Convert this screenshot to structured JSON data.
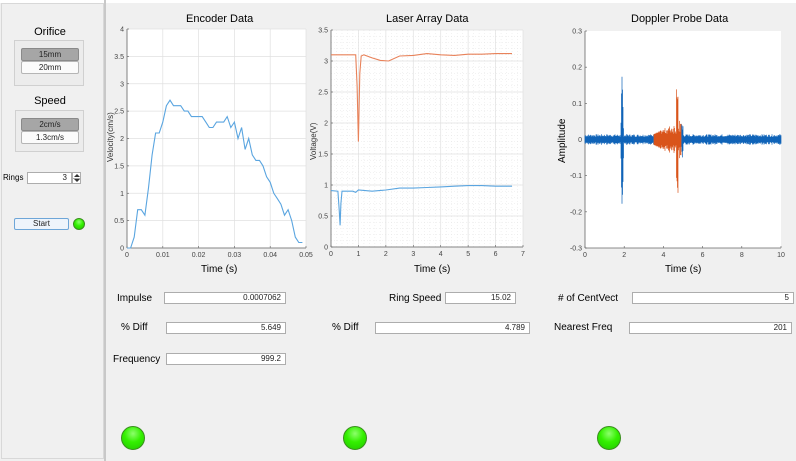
{
  "left_panel": {
    "orifice": {
      "title": "Orifice",
      "options": [
        {
          "label": "15mm",
          "selected": true
        },
        {
          "label": "20mm",
          "selected": false
        }
      ]
    },
    "speed": {
      "title": "Speed",
      "options": [
        {
          "label": "2cm/s",
          "selected": true
        },
        {
          "label": "1.3cm/s",
          "selected": false
        }
      ]
    },
    "rings": {
      "label": "Rings",
      "value": "3"
    },
    "start_label": "Start",
    "status_lamp_color": "#33ee00"
  },
  "encoder": {
    "title": "Encoder Data",
    "fields": {
      "impulse_label": "Impulse",
      "impulse_value": "0.0007062",
      "diff_label": "% Diff",
      "diff_value": "5.649",
      "frequency_label": "Frequency",
      "frequency_value": "999.2"
    },
    "lamp_color": "#33ee00"
  },
  "laser": {
    "title": "Laser Array Data",
    "fields": {
      "ring_speed_label": "Ring Speed",
      "ring_speed_value": "15.02",
      "diff_label": "% Diff",
      "diff_value": "4.789"
    },
    "lamp_color": "#33ee00"
  },
  "doppler": {
    "title": "Doppler Probe Data",
    "fields": {
      "centvect_label": "# of CentVect",
      "centvect_value": "5",
      "nearest_freq_label": "Nearest Freq",
      "nearest_freq_value": "201"
    },
    "lamp_color": "#33ee00"
  },
  "chart_data": [
    {
      "type": "line",
      "title": "Encoder Data",
      "xlabel": "Time (s)",
      "ylabel": "Velocity(cm/s)",
      "xlim": [
        0,
        0.05
      ],
      "ylim": [
        0,
        4
      ],
      "xticks": [
        "0",
        "0.01",
        "0.02",
        "0.03",
        "0.04",
        "0.05"
      ],
      "yticks": [
        "0",
        "0.5",
        "1",
        "1.5",
        "2",
        "2.5",
        "3",
        "3.5",
        "4"
      ],
      "grid": true,
      "series": [
        {
          "name": "velocity",
          "color": "#5aa5e0",
          "x": [
            0,
            0.001,
            0.002,
            0.003,
            0.004,
            0.005,
            0.006,
            0.007,
            0.008,
            0.009,
            0.01,
            0.011,
            0.012,
            0.013,
            0.014,
            0.015,
            0.016,
            0.017,
            0.018,
            0.019,
            0.02,
            0.021,
            0.022,
            0.023,
            0.024,
            0.025,
            0.026,
            0.027,
            0.028,
            0.029,
            0.03,
            0.031,
            0.032,
            0.033,
            0.034,
            0.035,
            0.036,
            0.037,
            0.038,
            0.039,
            0.04,
            0.041,
            0.042,
            0.043,
            0.044,
            0.045,
            0.046,
            0.047,
            0.048,
            0.049
          ],
          "values": [
            0,
            0,
            0.2,
            0.7,
            0.7,
            0.6,
            1.1,
            1.7,
            2.1,
            2.1,
            2.3,
            2.6,
            2.7,
            2.6,
            2.6,
            2.6,
            2.5,
            2.5,
            2.4,
            2.4,
            2.4,
            2.4,
            2.3,
            2.2,
            2.2,
            2.3,
            2.3,
            2.3,
            2.4,
            2.2,
            2.3,
            2.0,
            2.2,
            1.8,
            2.0,
            1.7,
            1.6,
            1.6,
            1.5,
            1.3,
            1.2,
            1.0,
            0.9,
            0.8,
            0.6,
            0.7,
            0.5,
            0.2,
            0.1,
            0.1
          ]
        }
      ]
    },
    {
      "type": "line",
      "title": "Laser Array Data",
      "xlabel": "Time (s)",
      "ylabel": "Voltage(V)",
      "xlim": [
        0,
        7
      ],
      "ylim": [
        0,
        3.5
      ],
      "xticks": [
        "0",
        "1",
        "2",
        "3",
        "4",
        "5",
        "6",
        "7"
      ],
      "yticks": [
        "0",
        "0.5",
        "1",
        "1.5",
        "2",
        "2.5",
        "3",
        "3.5"
      ],
      "grid": true,
      "minor_grid": true,
      "series": [
        {
          "name": "laser 1",
          "color": "#e8825a",
          "x": [
            0,
            0.5,
            0.9,
            0.95,
            1.0,
            1.05,
            1.1,
            1.2,
            1.5,
            1.8,
            2.1,
            2.5,
            3.0,
            3.5,
            4.0,
            4.5,
            5.0,
            5.5,
            6.0,
            6.6
          ],
          "values": [
            3.1,
            3.1,
            3.1,
            2.6,
            1.7,
            2.8,
            3.08,
            3.1,
            3.05,
            3.01,
            3.0,
            3.08,
            3.09,
            3.12,
            3.1,
            3.09,
            3.11,
            3.11,
            3.12,
            3.12
          ]
        },
        {
          "name": "laser 2",
          "color": "#5aa5e0",
          "x": [
            0,
            0.25,
            0.3,
            0.33,
            0.36,
            0.4,
            0.8,
            0.9,
            1.0,
            1.5,
            2.0,
            2.5,
            3.0,
            3.5,
            4.0,
            4.5,
            5.0,
            5.5,
            6.0,
            6.6
          ],
          "values": [
            0.91,
            0.9,
            0.6,
            0.35,
            0.7,
            0.9,
            0.9,
            0.88,
            0.92,
            0.9,
            0.92,
            0.95,
            0.95,
            0.96,
            0.97,
            0.98,
            0.99,
            0.99,
            0.98,
            0.98
          ]
        }
      ]
    },
    {
      "type": "line",
      "title": "Doppler Probe Data",
      "xlabel": "Time (s)",
      "ylabel": "Amplitude",
      "xlim": [
        0,
        10
      ],
      "ylim": [
        -0.3,
        0.3
      ],
      "xticks": [
        "0",
        "2",
        "4",
        "6",
        "8",
        "10"
      ],
      "yticks": [
        "-0.3",
        "-0.2",
        "-0.1",
        "0",
        "0.1",
        "0.2",
        "0.3"
      ],
      "grid": false,
      "series": [
        {
          "name": "signal",
          "color": "#0f63b8",
          "baseline_band": [
            -0.012,
            0.012
          ],
          "spike": {
            "x": 1.9,
            "max": 0.25,
            "min": -0.27
          },
          "secondary_burst": {
            "x": [
              4.8,
              5.0
            ],
            "max": 0.07,
            "min": -0.06
          }
        },
        {
          "name": "segment",
          "color": "#d9541a",
          "x_range": [
            3.5,
            4.9
          ],
          "max": 0.145,
          "min": -0.15,
          "peak_x": 4.7
        }
      ]
    }
  ]
}
